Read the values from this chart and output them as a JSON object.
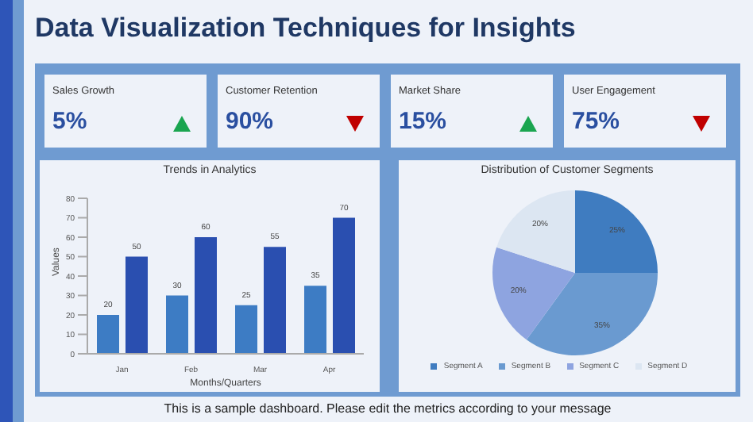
{
  "chart_data": [
    {
      "type": "other",
      "title": "Data Visualization Techniques for Insights",
      "categories": [
        "Sales Growth",
        "Customer Retention",
        "Market Share",
        "User Engagement"
      ],
      "value_labels": [
        "5%",
        "90%",
        "15%",
        "75%"
      ],
      "annotations": [
        "This is a sample dashboard. Please edit the metrics according to your message"
      ]
    },
    {
      "type": "bar",
      "title": "Trends in Analytics",
      "xlabel": "Months/Quarters",
      "ylabel": "Values",
      "categories": [
        "Jan",
        "Feb",
        "Mar",
        "Apr"
      ],
      "series": [
        {
          "color": "#3d7cc4",
          "values": [
            20,
            30,
            25,
            35
          ]
        },
        {
          "color": "#2a4fb0",
          "values": [
            50,
            60,
            55,
            70
          ]
        }
      ],
      "ylim": [
        0,
        80
      ],
      "yticks": [
        0,
        10,
        20,
        30,
        40,
        50,
        60,
        70,
        80
      ],
      "data_labels": true,
      "grid": false,
      "legend": false
    },
    {
      "type": "pie",
      "title": "Distribution of Customer Segments",
      "categories": [
        "Segment A",
        "Segment B",
        "Segment C",
        "Segment D"
      ],
      "values": [
        25,
        35,
        20,
        20
      ],
      "colors": [
        "#3f7cc0",
        "#6a9ad0",
        "#8ea4e0",
        "#dce6f2"
      ],
      "value_labels": [
        "25%",
        "35%",
        "20%",
        "20%"
      ],
      "legend": "bottom"
    }
  ]
}
